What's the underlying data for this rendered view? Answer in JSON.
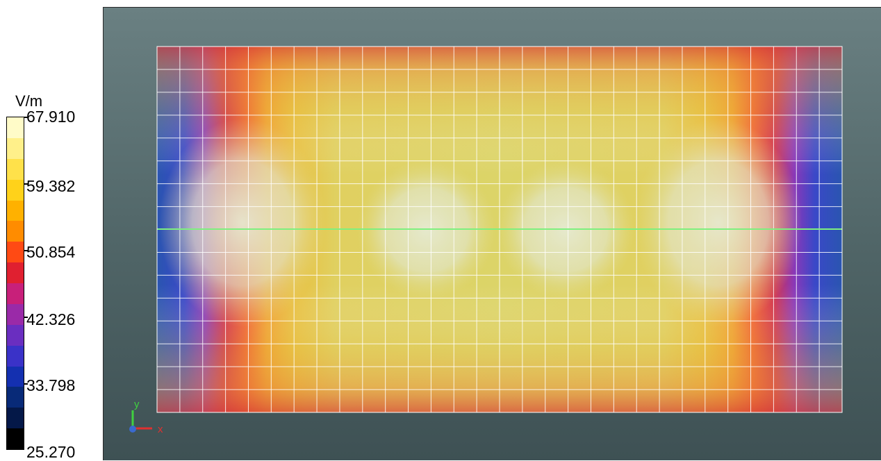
{
  "legend": {
    "unit": "V/m",
    "labels": [
      "67.910",
      "59.382",
      "50.854",
      "42.326",
      "33.798",
      "25.270"
    ],
    "colors": [
      "#fffbc8",
      "#fff08a",
      "#ffe14a",
      "#ffd21a",
      "#ffb100",
      "#ff8c00",
      "#ff4a14",
      "#e02030",
      "#c8207a",
      "#9a2aa8",
      "#6a2ec0",
      "#3a32c8",
      "#1430b0",
      "#082a78",
      "#041848",
      "#000000"
    ]
  },
  "viewport": {
    "field": "electric field magnitude",
    "grid_columns": 30,
    "grid_rows": 16
  },
  "triad": {
    "x_label": "x",
    "y_label": "y",
    "x_color": "#e03030",
    "y_color": "#40d040"
  }
}
